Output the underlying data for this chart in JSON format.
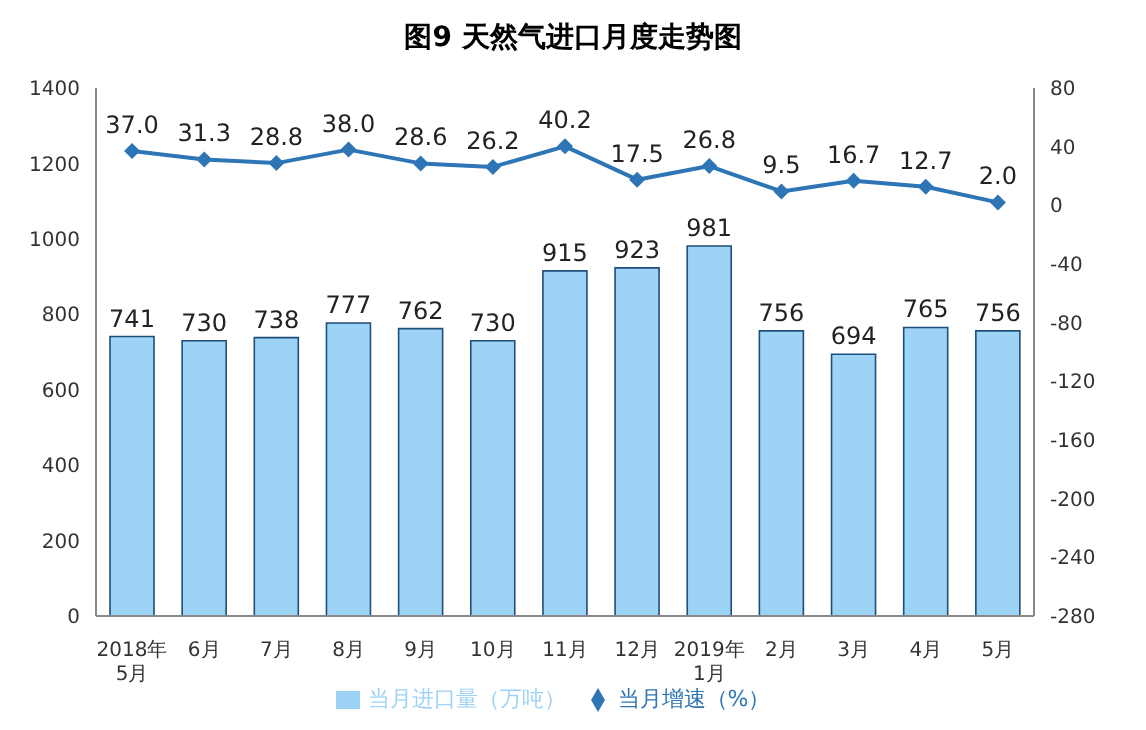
{
  "chart_data": {
    "type": "bar",
    "title": "图9  天然气进口月度走势图",
    "categories": [
      "2018年\n5月",
      "6月",
      "7月",
      "8月",
      "9月",
      "10月",
      "11月",
      "12月",
      "2019年\n1月",
      "2月",
      "3月",
      "4月",
      "5月"
    ],
    "series": [
      {
        "name": "当月进口量（万吨）",
        "color": "#9dd3f5",
        "values": [
          741,
          730,
          738,
          777,
          762,
          730,
          915,
          923,
          981,
          756,
          694,
          765,
          756
        ]
      },
      {
        "name": "当月增速（%）",
        "type": "line",
        "axis": "y2",
        "color": "#2e75b6",
        "values": [
          37.0,
          31.3,
          28.8,
          38.0,
          28.6,
          26.2,
          40.2,
          17.5,
          26.8,
          9.5,
          16.7,
          12.7,
          2.0
        ],
        "value_labels": [
          "37.0",
          "31.3",
          "28.8",
          "38.0",
          "28.6",
          "26.2",
          "40.2",
          "17.5",
          "26.8",
          "9.5",
          "16.7",
          "12.7",
          "2.0"
        ]
      }
    ],
    "ylim": [
      0,
      1400
    ],
    "yticks": [
      0,
      200,
      400,
      600,
      800,
      1000,
      1200,
      1400
    ],
    "y2lim": [
      -280,
      80
    ],
    "y2ticks": [
      -280,
      -240,
      -200,
      -160,
      -120,
      -80,
      -40,
      0,
      40,
      80
    ],
    "data_labels": true,
    "grid": false,
    "legend": "bottom",
    "marker": "diamond",
    "line_style": "solid"
  }
}
